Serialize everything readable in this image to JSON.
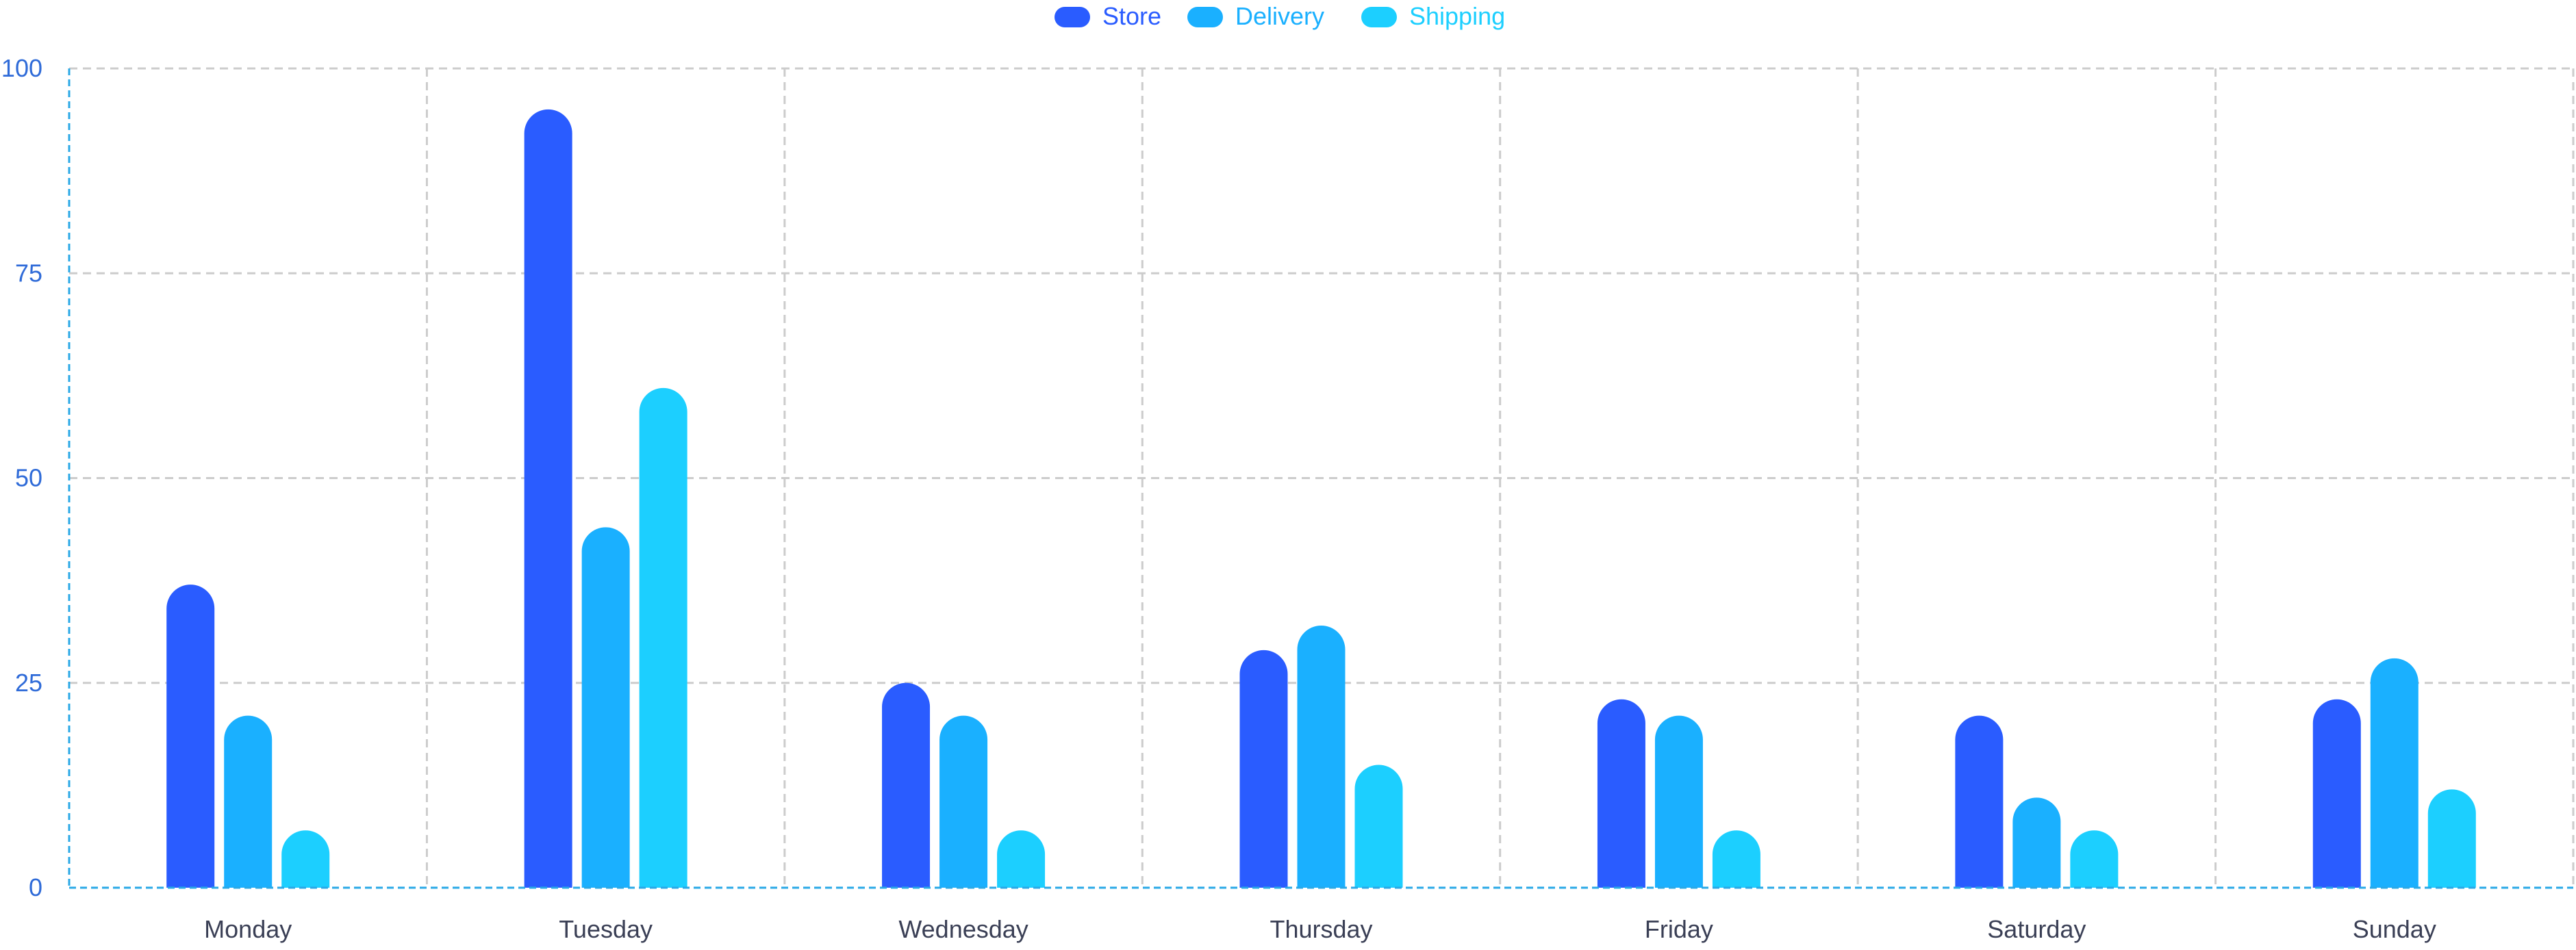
{
  "chart_data": {
    "type": "bar",
    "title": "",
    "xlabel": "",
    "ylabel": "",
    "categories": [
      "Monday",
      "Tuesday",
      "Wednesday",
      "Thursday",
      "Friday",
      "Saturday",
      "Sunday"
    ],
    "series": [
      {
        "name": "Store",
        "color": "#2a5cff",
        "values": [
          37,
          95,
          25,
          29,
          23,
          21,
          23
        ]
      },
      {
        "name": "Delivery",
        "color": "#1ab0ff",
        "values": [
          21,
          44,
          21,
          32,
          21,
          11,
          28
        ]
      },
      {
        "name": "Shipping",
        "color": "#1ccfff",
        "values": [
          7,
          61,
          7,
          15,
          7,
          7,
          12
        ]
      }
    ],
    "ylim": [
      0,
      100
    ],
    "yticks": [
      "0",
      "25",
      "50",
      "75",
      "100"
    ],
    "grid": true,
    "legend_position": "top-center"
  },
  "colors": {
    "axis": "#2aa8e6",
    "tick_text_y": "#2f6bd8",
    "tick_text_x": "#3a3f55",
    "grid": "#cccccc"
  }
}
